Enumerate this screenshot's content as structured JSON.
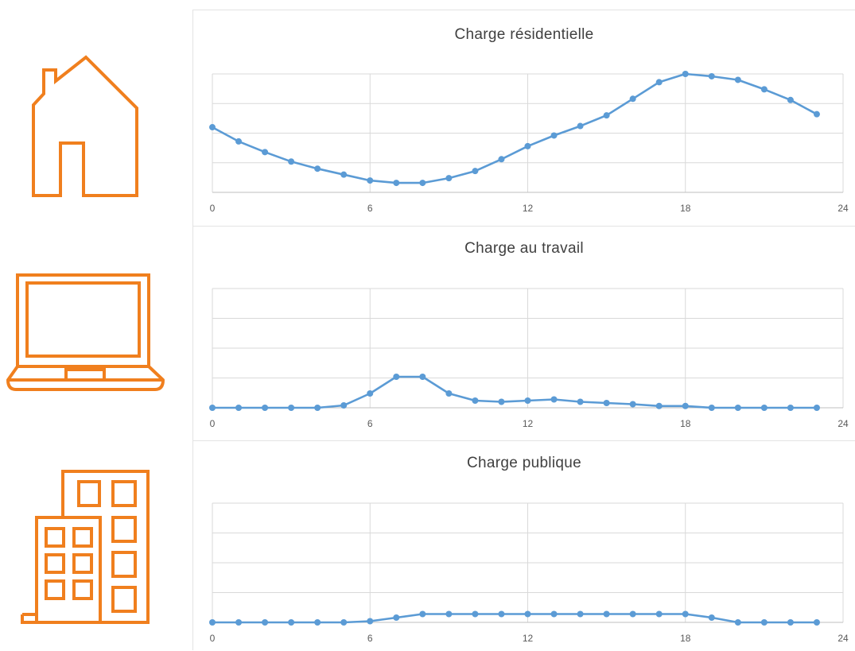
{
  "icons": {
    "residential": "house-icon",
    "work": "laptop-icon",
    "public": "office-building-icon",
    "color": "#f07f1e"
  },
  "chart_data": [
    {
      "type": "line",
      "title": "Charge résidentielle",
      "xlabel": "",
      "ylabel": "",
      "xlim": [
        0,
        24
      ],
      "ylim": [
        0,
        1
      ],
      "xticks": [
        "0",
        "6",
        "12",
        "18",
        "24"
      ],
      "grid": true,
      "line_color": "#5b9bd5",
      "x": [
        0,
        1,
        2,
        3,
        4,
        5,
        6,
        7,
        8,
        9,
        10,
        11,
        12,
        13,
        14,
        15,
        16,
        17,
        18,
        19,
        20,
        21,
        22,
        23
      ],
      "values": [
        0.55,
        0.43,
        0.34,
        0.26,
        0.2,
        0.15,
        0.1,
        0.08,
        0.08,
        0.12,
        0.18,
        0.28,
        0.39,
        0.48,
        0.56,
        0.65,
        0.79,
        0.93,
        1.0,
        0.98,
        0.95,
        0.87,
        0.78,
        0.66
      ]
    },
    {
      "type": "line",
      "title": "Charge au travail",
      "xlabel": "",
      "ylabel": "",
      "xlim": [
        0,
        24
      ],
      "ylim": [
        0,
        1
      ],
      "xticks": [
        "0",
        "6",
        "12",
        "18",
        "24"
      ],
      "grid": true,
      "line_color": "#5b9bd5",
      "x": [
        0,
        1,
        2,
        3,
        4,
        5,
        6,
        7,
        8,
        9,
        10,
        11,
        12,
        13,
        14,
        15,
        16,
        17,
        18,
        19,
        20,
        21,
        22,
        23
      ],
      "values": [
        0,
        0,
        0,
        0,
        0,
        0.02,
        0.12,
        0.26,
        0.26,
        0.12,
        0.06,
        0.05,
        0.06,
        0.07,
        0.05,
        0.04,
        0.03,
        0.015,
        0.015,
        0,
        0,
        0,
        0,
        0
      ]
    },
    {
      "type": "line",
      "title": "Charge publique",
      "xlabel": "",
      "ylabel": "",
      "xlim": [
        0,
        24
      ],
      "ylim": [
        0,
        1
      ],
      "xticks": [
        "0",
        "6",
        "12",
        "18",
        "24"
      ],
      "grid": true,
      "line_color": "#5b9bd5",
      "x": [
        0,
        1,
        2,
        3,
        4,
        5,
        6,
        7,
        8,
        9,
        10,
        11,
        12,
        13,
        14,
        15,
        16,
        17,
        18,
        19,
        20,
        21,
        22,
        23
      ],
      "values": [
        0,
        0,
        0,
        0,
        0,
        0,
        0.01,
        0.04,
        0.07,
        0.07,
        0.07,
        0.07,
        0.07,
        0.07,
        0.07,
        0.07,
        0.07,
        0.07,
        0.07,
        0.04,
        0,
        0,
        0,
        0
      ]
    }
  ]
}
